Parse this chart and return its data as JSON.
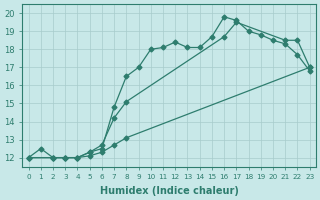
{
  "line1_x": [
    0,
    1,
    2,
    3,
    4,
    5,
    6,
    7,
    8,
    9,
    10,
    11,
    12,
    13,
    14,
    15,
    16,
    17,
    18,
    19,
    20,
    21,
    22,
    23
  ],
  "line1_y": [
    12,
    12.5,
    12,
    12,
    12,
    12.3,
    12.5,
    14.8,
    16.5,
    17.0,
    18.0,
    18.1,
    18.4,
    18.1,
    18.1,
    18.7,
    19.8,
    19.6,
    19.0,
    18.8,
    18.5,
    18.3,
    17.7,
    16.8
  ],
  "line2_x": [
    0,
    2,
    3,
    4,
    5,
    6,
    7,
    8,
    16,
    17,
    21,
    22,
    23
  ],
  "line2_y": [
    12,
    12,
    12,
    12,
    12.3,
    12.7,
    14.2,
    15.1,
    18.7,
    19.5,
    18.5,
    18.5,
    17.0
  ],
  "line3_x": [
    0,
    2,
    3,
    4,
    5,
    6,
    7,
    8,
    23
  ],
  "line3_y": [
    12,
    12,
    12,
    12,
    12.1,
    12.3,
    12.7,
    13.1,
    17.0
  ],
  "color": "#2e7d6e",
  "bg_color": "#c8e8e8",
  "grid_color": "#a8cccc",
  "xlabel": "Humidex (Indice chaleur)",
  "xlim": [
    -0.5,
    23.5
  ],
  "ylim": [
    11.5,
    20.5
  ],
  "xticks": [
    0,
    1,
    2,
    3,
    4,
    5,
    6,
    7,
    8,
    9,
    10,
    11,
    12,
    13,
    14,
    15,
    16,
    17,
    18,
    19,
    20,
    21,
    22,
    23
  ],
  "yticks": [
    12,
    13,
    14,
    15,
    16,
    17,
    18,
    19,
    20
  ],
  "marker": "D",
  "markersize": 2.5,
  "linewidth": 0.9
}
